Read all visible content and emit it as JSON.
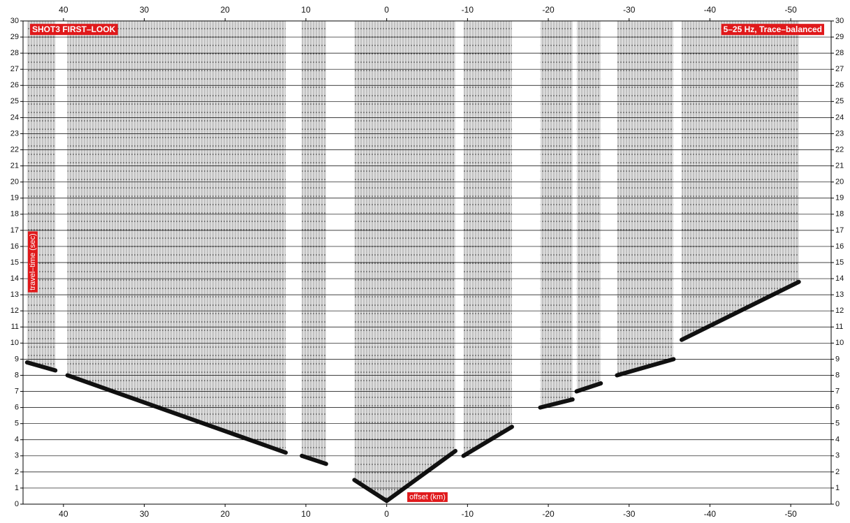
{
  "chart_data": {
    "type": "seismic",
    "title": "SHOT3 FIRST–LOOK",
    "annotation": "5–25 Hz, Trace–balanced",
    "xlabel": "offset (km)",
    "ylabel": "travel–time (sec)",
    "xlim": [
      45,
      -55
    ],
    "ylim": [
      0,
      30
    ],
    "xticks": [
      40,
      30,
      20,
      10,
      0,
      -10,
      -20,
      -30,
      -40,
      -50
    ],
    "yticks": [
      0,
      1,
      2,
      3,
      4,
      5,
      6,
      7,
      8,
      9,
      10,
      11,
      12,
      13,
      14,
      15,
      16,
      17,
      18,
      19,
      20,
      21,
      22,
      23,
      24,
      25,
      26,
      27,
      28,
      29,
      30
    ],
    "grid": true,
    "color": "#111111",
    "label_color": "#e0191b",
    "segments": [
      {
        "x": [
          44.5,
          41
        ],
        "values": [
          8.8,
          8.3
        ]
      },
      {
        "x": [
          39.5,
          12.5
        ],
        "values": [
          8.0,
          3.2
        ]
      },
      {
        "x": [
          10.5,
          7.5
        ],
        "values": [
          3.0,
          2.5
        ]
      },
      {
        "x": [
          4,
          0,
          -8.5
        ],
        "values": [
          1.5,
          0.2,
          3.3
        ]
      },
      {
        "x": [
          -9.5,
          -15.5
        ],
        "values": [
          3.0,
          4.8
        ]
      },
      {
        "x": [
          -19,
          -23
        ],
        "values": [
          6.0,
          6.5
        ]
      },
      {
        "x": [
          -23.5,
          -26.5
        ],
        "values": [
          7.0,
          7.5
        ]
      },
      {
        "x": [
          -28.5,
          -35.5
        ],
        "values": [
          8.0,
          9.0
        ]
      },
      {
        "x": [
          -36.5,
          -51
        ],
        "values": [
          10.2,
          13.8
        ]
      }
    ]
  }
}
